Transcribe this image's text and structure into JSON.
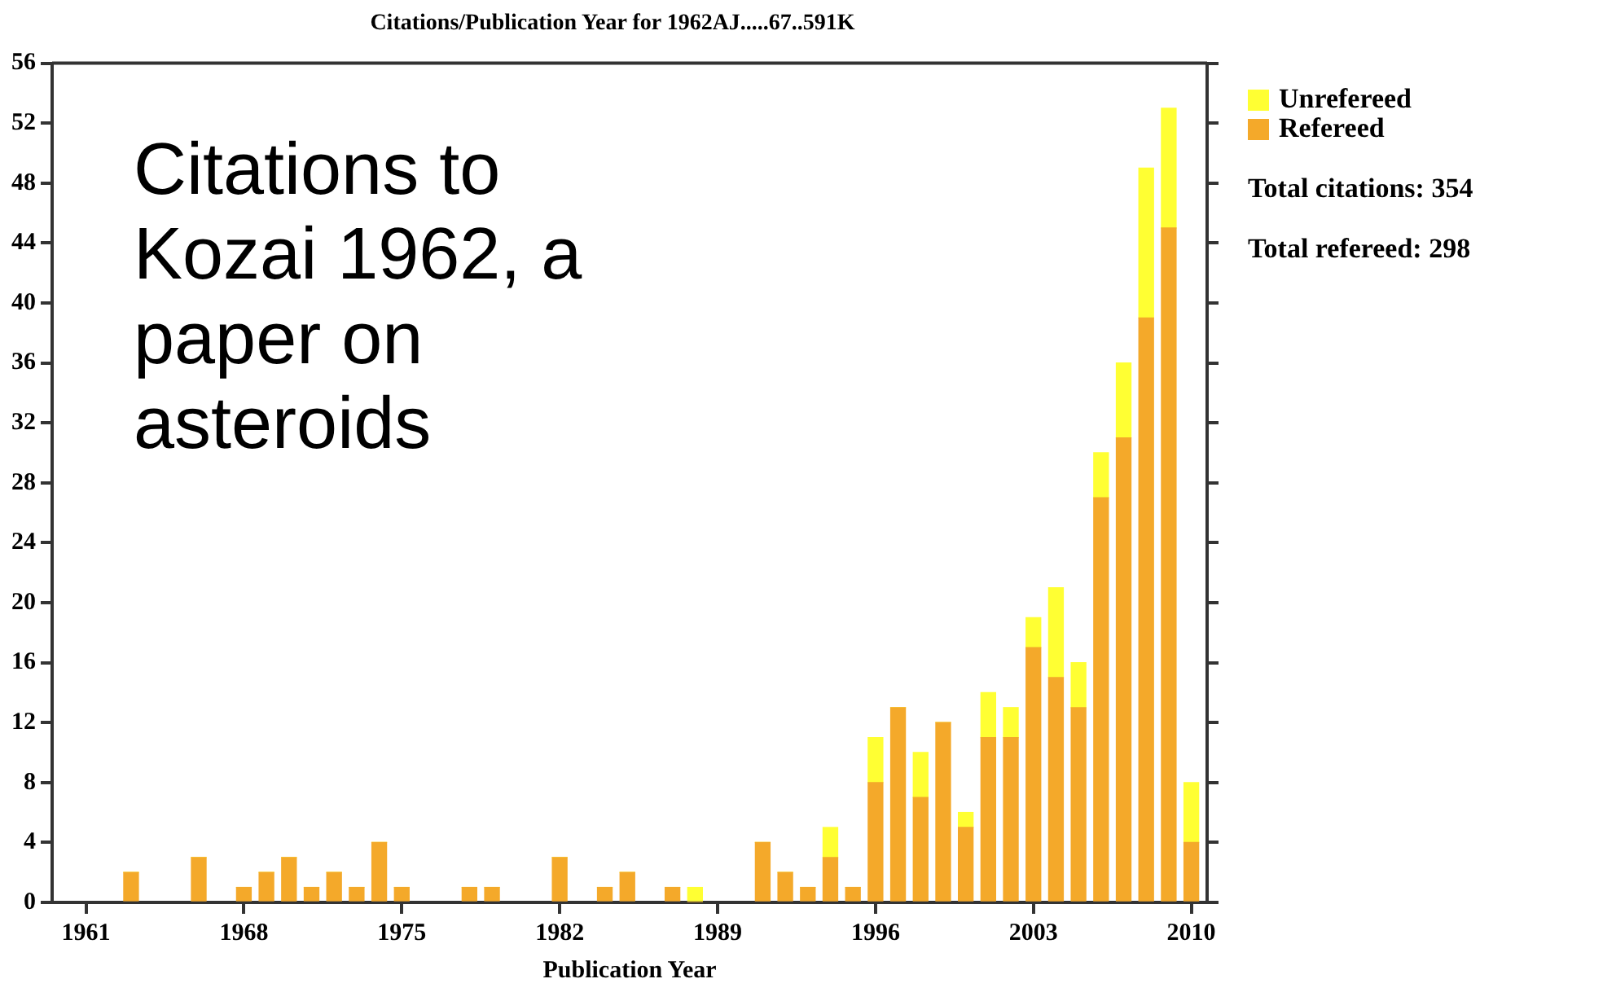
{
  "chart_data": {
    "type": "bar",
    "title": "Citations/Publication Year for 1962AJ.....67..591K",
    "xlabel": "Publication Year",
    "x": [
      1963,
      1966,
      1968,
      1969,
      1970,
      1971,
      1972,
      1973,
      1974,
      1975,
      1978,
      1979,
      1982,
      1984,
      1985,
      1987,
      1988,
      1991,
      1992,
      1993,
      1994,
      1995,
      1996,
      1997,
      1998,
      1999,
      2000,
      2001,
      2002,
      2003,
      2004,
      2005,
      2006,
      2007,
      2008,
      2009,
      2010
    ],
    "series": [
      {
        "name": "Refereed",
        "color": "#f4a92a",
        "values": [
          2,
          3,
          1,
          2,
          3,
          1,
          2,
          1,
          4,
          1,
          1,
          1,
          3,
          1,
          2,
          1,
          0,
          4,
          2,
          1,
          3,
          1,
          8,
          13,
          7,
          12,
          5,
          11,
          11,
          17,
          15,
          13,
          27,
          31,
          39,
          45,
          4
        ]
      },
      {
        "name": "Unrefereed",
        "color": "#ffff33",
        "values": [
          0,
          0,
          0,
          0,
          0,
          0,
          0,
          0,
          0,
          0,
          0,
          0,
          0,
          0,
          0,
          0,
          1,
          0,
          0,
          0,
          2,
          0,
          3,
          0,
          3,
          0,
          1,
          3,
          2,
          2,
          6,
          3,
          3,
          5,
          10,
          8,
          4
        ]
      }
    ],
    "stacked": true,
    "xlim": [
      1959.5,
      2010.7
    ],
    "xticks": [
      1961,
      1968,
      1975,
      1982,
      1989,
      1996,
      2003,
      2010
    ],
    "ylim": [
      0,
      56
    ],
    "yticks": [
      0,
      4,
      8,
      12,
      16,
      20,
      24,
      28,
      32,
      36,
      40,
      44,
      48,
      52,
      56
    ],
    "grid": false,
    "legend": "top right",
    "annotations": [
      "Citations to Kozai 1962, a paper on asteroids",
      "Total citations: 354",
      "Total refereed: 298"
    ]
  }
}
